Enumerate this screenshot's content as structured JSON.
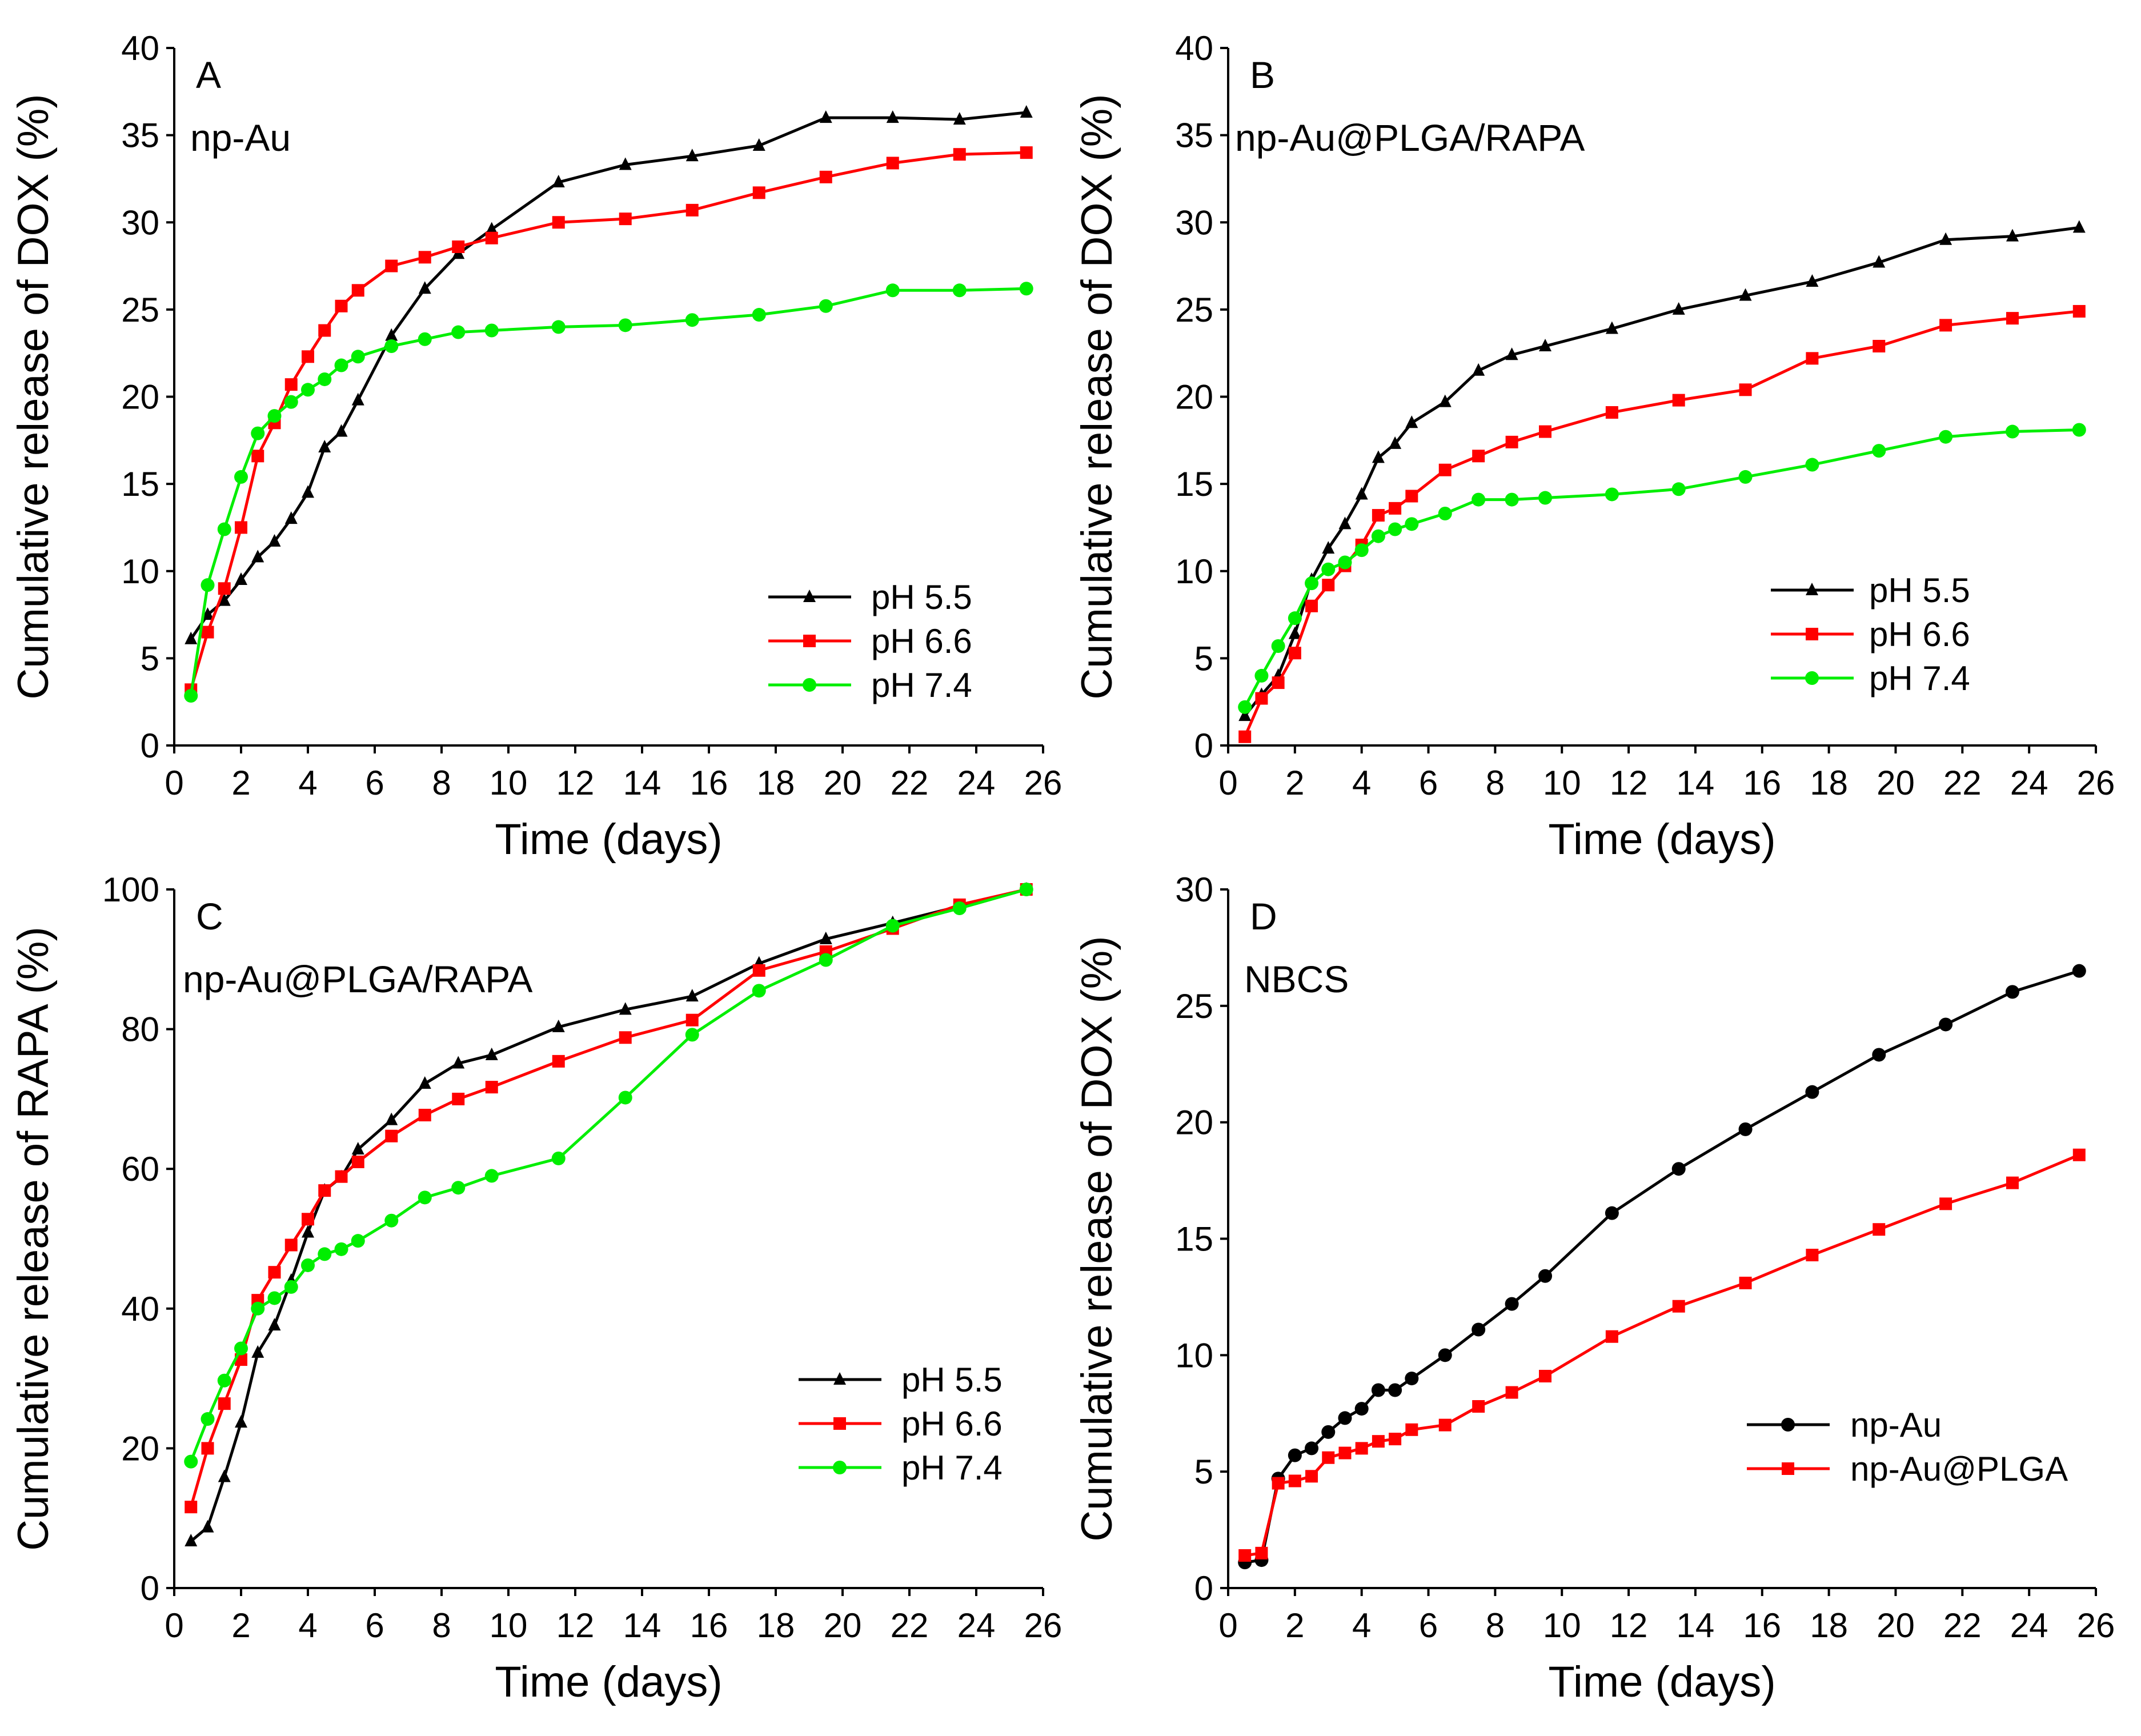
{
  "chart_data": [
    {
      "type": "line",
      "panel": "A",
      "title": "np-Au",
      "xlabel": "Time (days)",
      "ylabel": "Cumulative release of DOX (%)",
      "xlim": [
        0,
        26
      ],
      "ylim": [
        0,
        40
      ],
      "xticks": [
        0,
        2,
        4,
        6,
        8,
        10,
        12,
        14,
        16,
        18,
        20,
        22,
        24,
        26
      ],
      "yticks": [
        0,
        5,
        10,
        15,
        20,
        25,
        30,
        35,
        40
      ],
      "legend": "bottom-right",
      "x": [
        0.5,
        1,
        1.5,
        2,
        2.5,
        3,
        3.5,
        4,
        4.5,
        5,
        5.5,
        6.5,
        7.5,
        8.5,
        9.5,
        11.5,
        13.5,
        15.5,
        17.5,
        19.5,
        21.5,
        23.5,
        25.5
      ],
      "series": [
        {
          "name": "pH 5.5",
          "color": "#000000",
          "marker": "triangle",
          "values": [
            6.1,
            7.5,
            8.3,
            9.5,
            10.8,
            11.7,
            13.0,
            14.5,
            17.1,
            18.0,
            19.8,
            23.5,
            26.2,
            28.2,
            29.6,
            32.3,
            33.3,
            33.8,
            34.4,
            36.0,
            36.0,
            35.9,
            36.3
          ]
        },
        {
          "name": "pH 6.6",
          "color": "#ff0000",
          "marker": "square",
          "values": [
            3.2,
            6.5,
            9.0,
            12.5,
            16.6,
            18.5,
            20.7,
            22.3,
            23.8,
            25.2,
            26.1,
            27.5,
            28.0,
            28.6,
            29.1,
            30.0,
            30.2,
            30.7,
            31.7,
            32.6,
            33.4,
            33.9,
            34.0
          ]
        },
        {
          "name": "pH 7.4",
          "color": "#00ee00",
          "marker": "circle",
          "values": [
            2.85,
            9.2,
            12.4,
            15.4,
            17.9,
            18.9,
            19.7,
            20.4,
            21.0,
            21.8,
            22.3,
            22.9,
            23.3,
            23.7,
            23.8,
            24.0,
            24.1,
            24.4,
            24.7,
            25.2,
            26.1,
            26.1,
            26.2
          ]
        }
      ]
    },
    {
      "type": "line",
      "panel": "B",
      "title": "np-Au@PLGA/RAPA",
      "xlabel": "Time (days)",
      "ylabel": "Cumulative release of DOX (%)",
      "xlim": [
        0,
        26
      ],
      "ylim": [
        0,
        40
      ],
      "xticks": [
        0,
        2,
        4,
        6,
        8,
        10,
        12,
        14,
        16,
        18,
        20,
        22,
        24,
        26
      ],
      "yticks": [
        0,
        5,
        10,
        15,
        20,
        25,
        30,
        35,
        40
      ],
      "legend": "bottom-right",
      "x": [
        0.5,
        1,
        1.5,
        2,
        2.5,
        3,
        3.5,
        4,
        4.5,
        5,
        5.5,
        6.5,
        7.5,
        8.5,
        9.5,
        11.5,
        13.5,
        15.5,
        17.5,
        19.5,
        21.5,
        23.5,
        25.5
      ],
      "series": [
        {
          "name": "pH 5.5",
          "color": "#000000",
          "marker": "triangle",
          "values": [
            1.7,
            2.9,
            4.0,
            6.4,
            9.5,
            11.3,
            12.7,
            14.4,
            16.5,
            17.3,
            18.5,
            19.7,
            21.5,
            22.4,
            22.9,
            23.9,
            25.0,
            25.8,
            26.6,
            27.7,
            29.0,
            29.2,
            29.7
          ]
        },
        {
          "name": "pH 6.6",
          "color": "#ff0000",
          "marker": "square",
          "values": [
            0.5,
            2.7,
            3.6,
            5.3,
            8.0,
            9.2,
            10.3,
            11.5,
            13.2,
            13.6,
            14.3,
            15.8,
            16.6,
            17.4,
            18.0,
            19.1,
            19.8,
            20.4,
            22.2,
            22.9,
            24.1,
            24.5,
            24.9
          ]
        },
        {
          "name": "pH 7.4",
          "color": "#00ee00",
          "marker": "circle",
          "values": [
            2.2,
            4.0,
            5.7,
            7.3,
            9.3,
            10.1,
            10.5,
            11.2,
            12.0,
            12.4,
            12.7,
            13.3,
            14.1,
            14.1,
            14.2,
            14.4,
            14.7,
            15.4,
            16.1,
            16.9,
            17.7,
            18.0,
            18.1
          ]
        }
      ]
    },
    {
      "type": "line",
      "panel": "C",
      "title": "np-Au@PLGA/RAPA",
      "xlabel": "Time (days)",
      "ylabel": "Cumulative release of RAPA (%)",
      "xlim": [
        0,
        26
      ],
      "ylim": [
        0,
        100
      ],
      "xticks": [
        0,
        2,
        4,
        6,
        8,
        10,
        12,
        14,
        16,
        18,
        20,
        22,
        24,
        26
      ],
      "yticks": [
        0,
        20,
        40,
        60,
        80,
        100
      ],
      "legend": "bottom-right",
      "x": [
        0.5,
        1,
        1.5,
        2,
        2.5,
        3,
        3.5,
        4,
        4.5,
        5,
        5.5,
        6.5,
        7.5,
        8.5,
        9.5,
        11.5,
        13.5,
        15.5,
        17.5,
        19.5,
        21.5,
        23.5,
        25.5
      ],
      "series": [
        {
          "name": "pH 5.5",
          "color": "#000000",
          "marker": "triangle",
          "values": [
            6.7,
            8.7,
            15.9,
            23.7,
            33.7,
            37.6,
            44.0,
            50.9,
            56.9,
            58.8,
            62.8,
            67.0,
            72.2,
            75.1,
            76.3,
            80.3,
            82.8,
            84.7,
            89.4,
            92.9,
            95.2,
            97.6,
            100
          ]
        },
        {
          "name": "pH 6.6",
          "color": "#ff0000",
          "marker": "square",
          "values": [
            11.6,
            20.0,
            26.4,
            32.7,
            41.2,
            45.2,
            49.1,
            52.8,
            56.9,
            58.9,
            61.0,
            64.7,
            67.7,
            70.0,
            71.7,
            75.4,
            78.8,
            81.3,
            88.4,
            91.1,
            94.4,
            97.8,
            100
          ]
        },
        {
          "name": "pH 7.4",
          "color": "#00ee00",
          "marker": "circle",
          "values": [
            18.1,
            24.2,
            29.7,
            34.3,
            40.0,
            41.5,
            43.1,
            46.2,
            47.8,
            48.5,
            49.7,
            52.6,
            55.9,
            57.3,
            59.0,
            61.5,
            70.2,
            79.2,
            85.5,
            89.9,
            94.8,
            97.3,
            100
          ]
        }
      ]
    },
    {
      "type": "line",
      "panel": "D",
      "title": "NBCS",
      "xlabel": "Time (days)",
      "ylabel": "Cumulative release of DOX (%)",
      "xlim": [
        0,
        26
      ],
      "ylim": [
        0,
        30
      ],
      "xticks": [
        0,
        2,
        4,
        6,
        8,
        10,
        12,
        14,
        16,
        18,
        20,
        22,
        24,
        26
      ],
      "yticks": [
        0,
        5,
        10,
        15,
        20,
        25,
        30
      ],
      "legend": "bottom-right",
      "x": [
        0.5,
        1,
        1.5,
        2,
        2.5,
        3,
        3.5,
        4,
        4.5,
        5,
        5.5,
        6.5,
        7.5,
        8.5,
        9.5,
        11.5,
        13.5,
        15.5,
        17.5,
        19.5,
        21.5,
        23.5,
        25.5
      ],
      "series": [
        {
          "name": "np-Au",
          "color": "#000000",
          "marker": "circle",
          "values": [
            1.1,
            1.2,
            4.7,
            5.7,
            6.0,
            6.7,
            7.3,
            7.7,
            8.5,
            8.5,
            9.0,
            10.0,
            11.1,
            12.2,
            13.4,
            16.1,
            18.0,
            19.7,
            21.3,
            22.9,
            24.2,
            25.6,
            26.5
          ]
        },
        {
          "name": "np-Au@PLGA",
          "color": "#ff0000",
          "marker": "square",
          "values": [
            1.4,
            1.5,
            4.5,
            4.6,
            4.8,
            5.6,
            5.8,
            6.0,
            6.3,
            6.4,
            6.8,
            7.0,
            7.8,
            8.4,
            9.1,
            10.8,
            12.1,
            13.1,
            14.3,
            15.4,
            16.5,
            17.4,
            18.6
          ]
        }
      ]
    }
  ]
}
